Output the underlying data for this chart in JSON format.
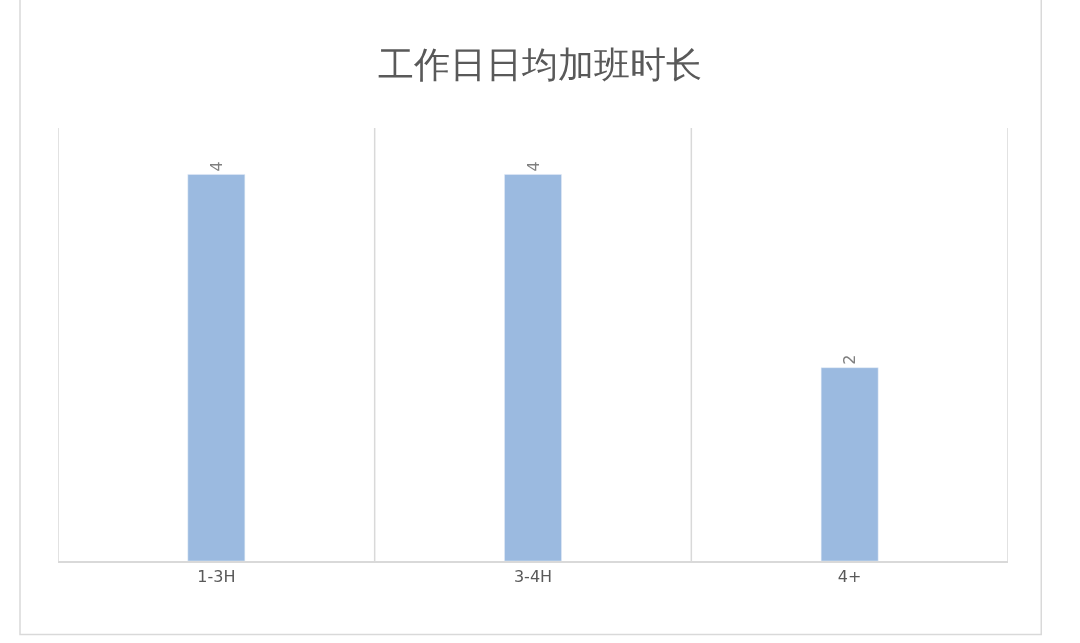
{
  "chart_data": {
    "type": "bar",
    "title": "工作日日均加班时长",
    "categories": [
      "1-3H",
      "3-4H",
      "4+"
    ],
    "values": [
      4,
      4,
      2
    ],
    "color": "#9bbae0",
    "data_labels": true,
    "grid": "x",
    "legend": false
  }
}
